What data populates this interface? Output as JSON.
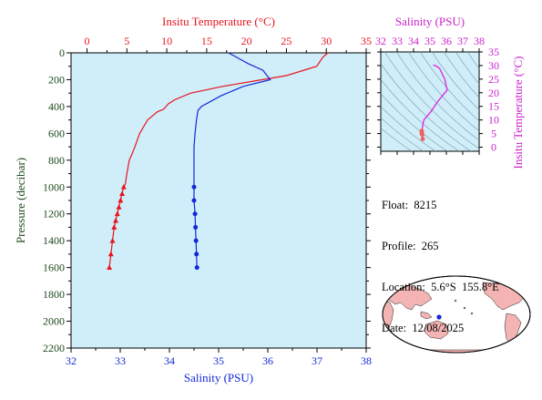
{
  "main_chart": {
    "top_axis_label": "Insitu Temperature (°C)",
    "bottom_axis_label": "Salinity (PSU)",
    "left_axis_label": "Pressure (decibar)",
    "pressure_ticks": [
      "0",
      "200",
      "400",
      "600",
      "800",
      "1000",
      "1200",
      "1400",
      "1600",
      "1800",
      "2000",
      "2200"
    ],
    "temperature_ticks": [
      "0",
      "5",
      "10",
      "15",
      "20",
      "25",
      "30",
      "35"
    ],
    "salinity_ticks": [
      "32",
      "33",
      "34",
      "35",
      "36",
      "37",
      "38"
    ],
    "colors": {
      "temperature": "#e8141e",
      "salinity": "#1228d8",
      "plot_bg": "#cfeefa",
      "axis_text_left": "#1e4a1e"
    }
  },
  "ts_chart": {
    "top_axis_label": "Salinity (PSU)",
    "right_axis_label": "Insitu Temperature (°C)",
    "salinity_ticks": [
      "32",
      "33",
      "34",
      "35",
      "36",
      "37",
      "38"
    ],
    "temperature_ticks": [
      "0",
      "5",
      "10",
      "15",
      "20",
      "25",
      "30",
      "35"
    ],
    "colors": {
      "axis": "#cc22cc",
      "curve": "#e020e0",
      "deep_points": "#f06060"
    }
  },
  "info": {
    "float_label": "Float:",
    "float_value": "8215",
    "profile_label": "Profile:",
    "profile_value": "265",
    "location_label": "Location:",
    "location_value": "5.6°S  155.8°E",
    "date_label": "Date:",
    "date_value": "12/08/2025"
  },
  "chart_data": [
    {
      "type": "line",
      "series": [
        {
          "name": "Insitu Temperature (°C)",
          "axis": "top",
          "x": [
            30.2,
            30.0,
            29.6,
            28.8,
            25.0,
            21.0,
            17.0,
            13.0,
            11.0,
            10.2,
            9.6,
            8.8,
            7.6,
            6.6,
            6.0,
            5.6,
            5.3,
            5.0,
            4.8,
            4.6,
            4.4,
            4.2,
            4.0,
            3.8,
            3.6,
            3.4,
            3.2,
            3.0,
            2.8
          ],
          "y": [
            0,
            10,
            30,
            100,
            170,
            210,
            250,
            300,
            350,
            380,
            420,
            440,
            500,
            600,
            700,
            760,
            800,
            900,
            980,
            1000,
            1050,
            1100,
            1150,
            1200,
            1250,
            1300,
            1400,
            1500,
            1600
          ],
          "markers_from_pressure": 1000,
          "marker": "triangle"
        },
        {
          "name": "Salinity (PSU)",
          "axis": "bottom",
          "x": [
            35.2,
            35.3,
            35.45,
            35.6,
            35.9,
            36.05,
            35.5,
            35.05,
            34.65,
            34.58,
            34.55,
            34.52,
            34.5,
            34.5,
            34.5,
            34.5,
            34.5,
            34.52,
            34.53,
            34.54,
            34.55,
            34.56
          ],
          "y": [
            0,
            20,
            50,
            80,
            130,
            200,
            250,
            320,
            400,
            430,
            500,
            600,
            700,
            800,
            900,
            1000,
            1100,
            1200,
            1300,
            1400,
            1500,
            1600
          ],
          "markers_from_pressure": 1000,
          "marker": "circle"
        }
      ],
      "ylim": [
        0,
        2200
      ],
      "xlim_top": [
        -2,
        35
      ],
      "xlim_bottom": [
        32,
        38
      ],
      "y_inverted": true,
      "grid": false
    },
    {
      "type": "line",
      "series": [
        {
          "name": "T-S profile",
          "x": [
            35.2,
            35.3,
            35.45,
            35.6,
            35.9,
            36.05,
            35.5,
            35.05,
            34.65,
            34.58,
            34.55,
            34.52,
            34.5,
            34.5,
            34.5,
            34.53,
            34.56
          ],
          "y": [
            30.2,
            30.0,
            29.6,
            28.8,
            25.0,
            21.0,
            17.0,
            13.0,
            10.2,
            8.8,
            7.6,
            6.6,
            6.0,
            5.6,
            5.0,
            4.6,
            3.0
          ]
        }
      ],
      "xlim": [
        32,
        38
      ],
      "ylim": [
        -1.5,
        35
      ],
      "grid": true
    }
  ]
}
